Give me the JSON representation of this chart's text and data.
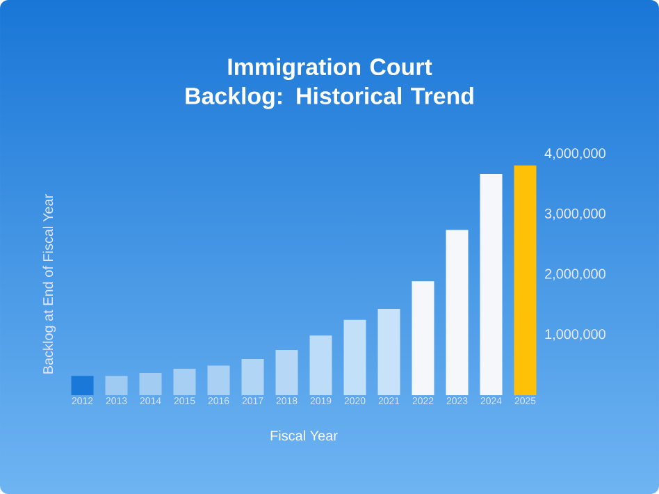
{
  "chart_data": {
    "type": "bar",
    "title": "Immigration Court Backlog: Historical Trend",
    "xlabel": "Fiscal Year",
    "ylabel": "Backlog at End of Fiscal Year",
    "categories": [
      "2012",
      "2013",
      "2014",
      "2015",
      "2016",
      "2017",
      "2018",
      "2019",
      "2020",
      "2021",
      "2022",
      "2023",
      "2024",
      "2025"
    ],
    "values": [
      320000,
      320000,
      370000,
      440000,
      490000,
      600000,
      750000,
      990000,
      1250000,
      1430000,
      1890000,
      2740000,
      3670000,
      3810000
    ],
    "colors": [
      "#1a78d8",
      "#9fcaf2",
      "#a2ccf2",
      "#a6cff3",
      "#aad1f4",
      "#b0d5f5",
      "#b6d8f6",
      "#bcdcf7",
      "#c2e0f8",
      "#c8e3f9",
      "#f5f7fa",
      "#f5f7fa",
      "#f5f7fa",
      "#ffc107"
    ],
    "ylim": [
      0,
      4000000
    ],
    "yticks": [
      {
        "value": 1000000,
        "label": "1,000,000"
      },
      {
        "value": 2000000,
        "label": "2,000,000"
      },
      {
        "value": 3000000,
        "label": "3,000,000"
      },
      {
        "value": 4000000,
        "label": "4,000,000"
      }
    ],
    "grid": false
  }
}
